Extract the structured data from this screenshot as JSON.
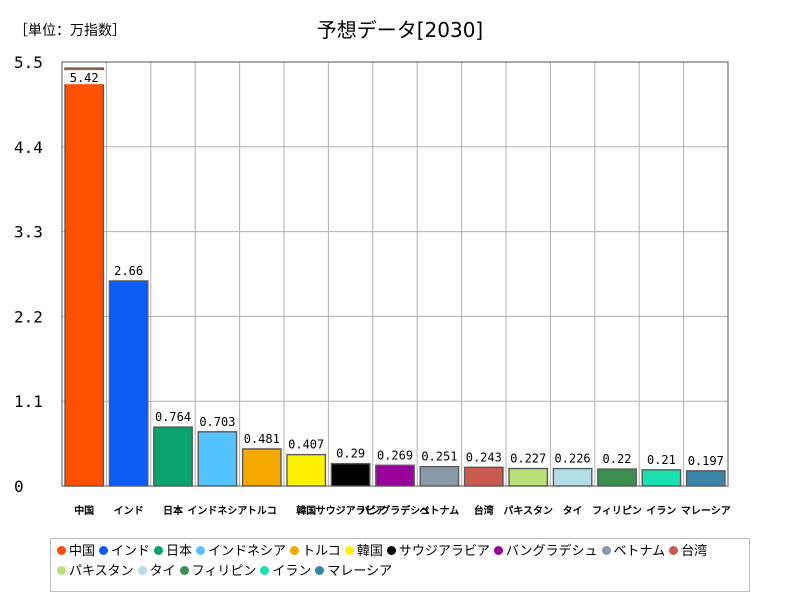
{
  "unit_label": "［単位：万指数］",
  "chart_data": {
    "type": "bar",
    "title": "予想データ[2030]",
    "categories": [
      "中国",
      "インド",
      "日本",
      "インドネシア",
      "トルコ",
      "韓国",
      "サウジアラビア",
      "バングラデシュ",
      "ベトナム",
      "台湾",
      "パキスタン",
      "タイ",
      "フィリピン",
      "イラン",
      "マレーシア"
    ],
    "values": [
      5.42,
      2.66,
      0.764,
      0.703,
      0.481,
      0.407,
      0.29,
      0.269,
      0.251,
      0.243,
      0.227,
      0.226,
      0.22,
      0.21,
      0.197
    ],
    "data_labels": [
      "5.42",
      "2.66",
      "0.764",
      "0.703",
      "0.481",
      "0.407",
      "0.29",
      "0.269",
      "0.251",
      "0.243",
      "0.227",
      "0.226",
      "0.22",
      "0.21",
      "0.197"
    ],
    "colors": [
      "#ff4f00",
      "#0d5cf5",
      "#0aa36f",
      "#55c3ff",
      "#f5a800",
      "#fff200",
      "#000000",
      "#990099",
      "#8a9aa8",
      "#c85a50",
      "#b8e07a",
      "#b5dde8",
      "#3e8d50",
      "#1ae0b2",
      "#3a85a6"
    ],
    "ylim": [
      0,
      5.5
    ],
    "yticks": [
      0,
      1.1,
      2.2,
      3.3,
      4.4,
      5.5
    ],
    "ytick_labels": [
      "0",
      "1.1",
      "2.2",
      "3.3",
      "4.4",
      "5.5"
    ],
    "grid": true,
    "legend_position": "bottom"
  }
}
